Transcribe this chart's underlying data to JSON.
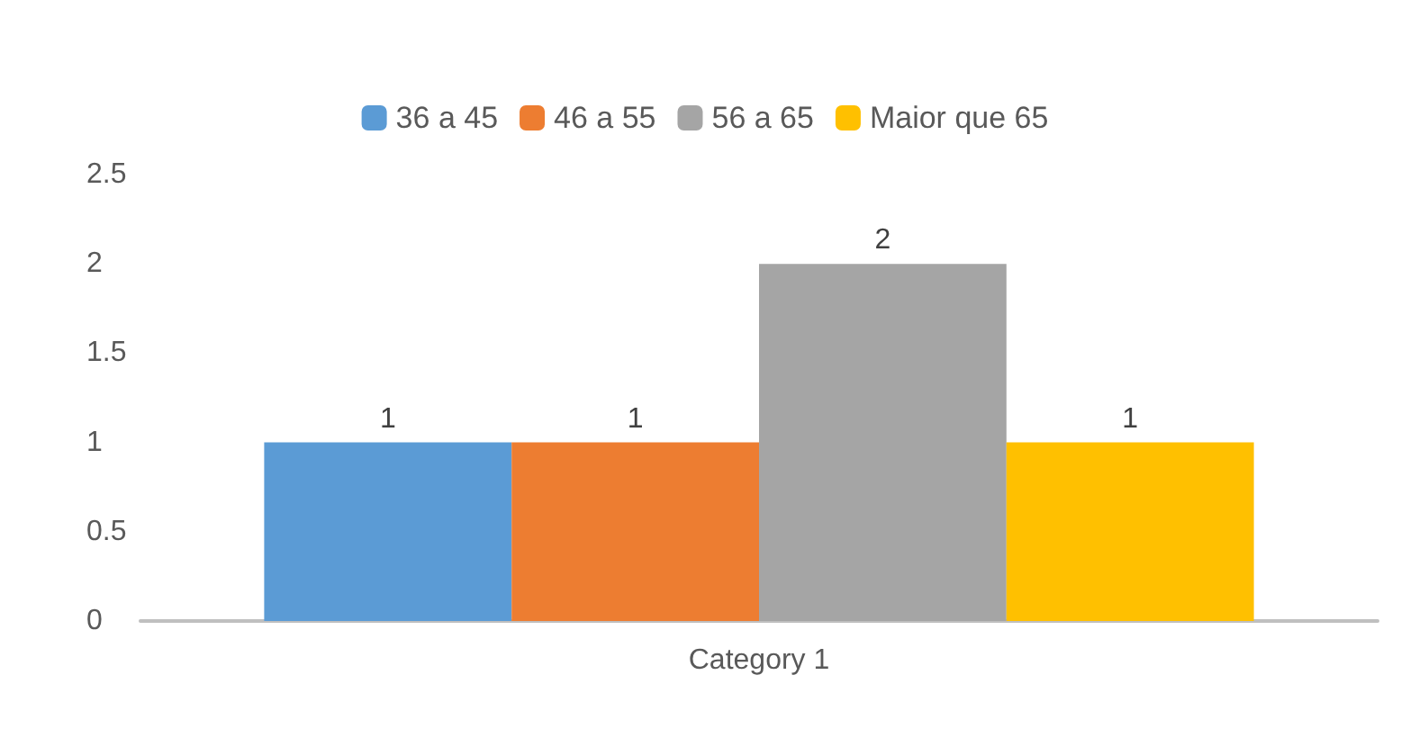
{
  "chart_data": {
    "type": "bar",
    "categories": [
      "Category 1"
    ],
    "series": [
      {
        "name": "36 a 45",
        "color": "#5b9bd5",
        "values": [
          1
        ]
      },
      {
        "name": "46 a 55",
        "color": "#ed7d31",
        "values": [
          1
        ]
      },
      {
        "name": "56 a 65",
        "color": "#a5a5a5",
        "values": [
          2
        ]
      },
      {
        "name": "Maior que 65",
        "color": "#ffc000",
        "values": [
          1
        ]
      }
    ],
    "ylim": [
      0,
      2.5
    ],
    "yticks": [
      0,
      0.5,
      1,
      1.5,
      2,
      2.5
    ],
    "grid": false,
    "legend": "top",
    "data_labels": true
  }
}
